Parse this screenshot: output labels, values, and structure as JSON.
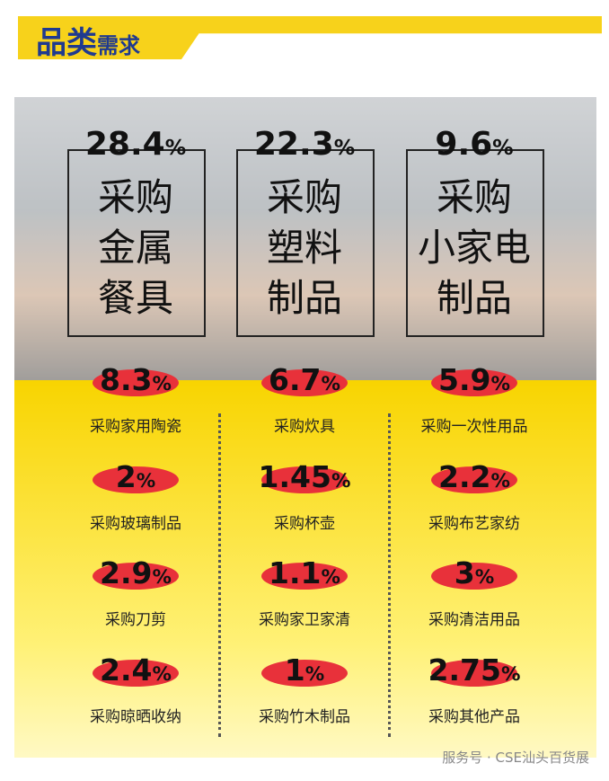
{
  "header": {
    "title_main": "品类",
    "title_sub": "需求"
  },
  "unit": "%",
  "highlights": [
    {
      "value": 28.4,
      "lines": [
        "采购",
        "金属",
        "餐具"
      ]
    },
    {
      "value": 22.3,
      "lines": [
        "采购",
        "塑料",
        "制品"
      ]
    },
    {
      "value": 9.6,
      "lines": [
        "采购",
        "小家电",
        "制品"
      ]
    }
  ],
  "items": [
    {
      "value": 8.3,
      "label": "采购家用陶瓷"
    },
    {
      "value": 6.7,
      "label": "采购炊具"
    },
    {
      "value": 5.9,
      "label": "采购一次性用品"
    },
    {
      "value": 2,
      "label": "采购玻璃制品"
    },
    {
      "value": 1.45,
      "label": "采购杯壶"
    },
    {
      "value": 2.2,
      "label": "采购布艺家纺"
    },
    {
      "value": 2.9,
      "label": "采购刀剪"
    },
    {
      "value": 1.1,
      "label": "采购家卫家清"
    },
    {
      "value": 3,
      "label": "采购清洁用品"
    },
    {
      "value": 2.4,
      "label": "采购晾晒收纳"
    },
    {
      "value": 1,
      "label": "采购竹木制品"
    },
    {
      "value": 2.75,
      "label": "采购其他产品"
    }
  ],
  "footer": "服务号 · CSE汕头百货展"
}
